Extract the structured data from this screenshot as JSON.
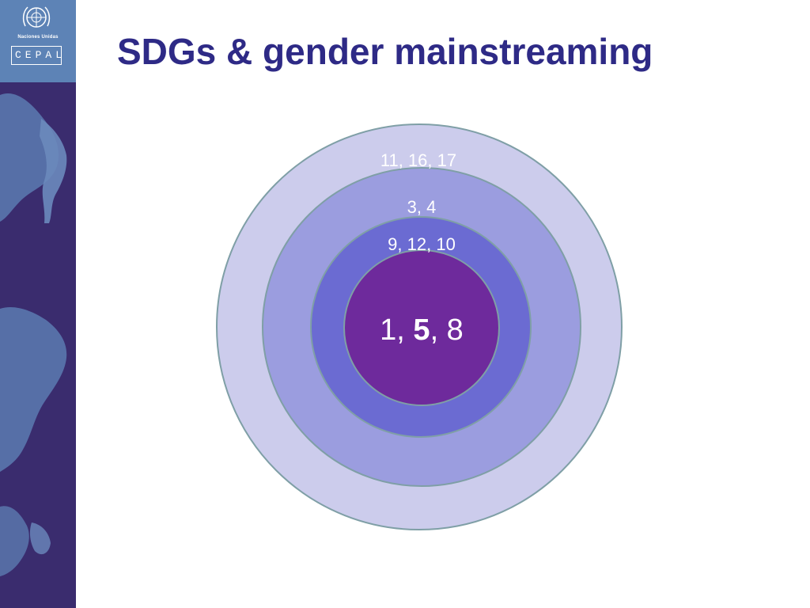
{
  "header": {
    "title": "SDGs & gender mainstreaming"
  },
  "logo": {
    "org_line": "Naciones Unidas",
    "brand": "CEPAL"
  },
  "diagram": {
    "rings": [
      {
        "label": "11, 16, 17",
        "color": "#ccccec"
      },
      {
        "label": "3, 4",
        "color": "#9b9ddf"
      },
      {
        "label": "9, 12, 10",
        "color": "#6b6bd2"
      }
    ],
    "core": {
      "prefix": "1, ",
      "emphasis": "5",
      "suffix": ", 8",
      "color": "#6e2a9c"
    },
    "stroke_color": "#7f9fa6"
  }
}
